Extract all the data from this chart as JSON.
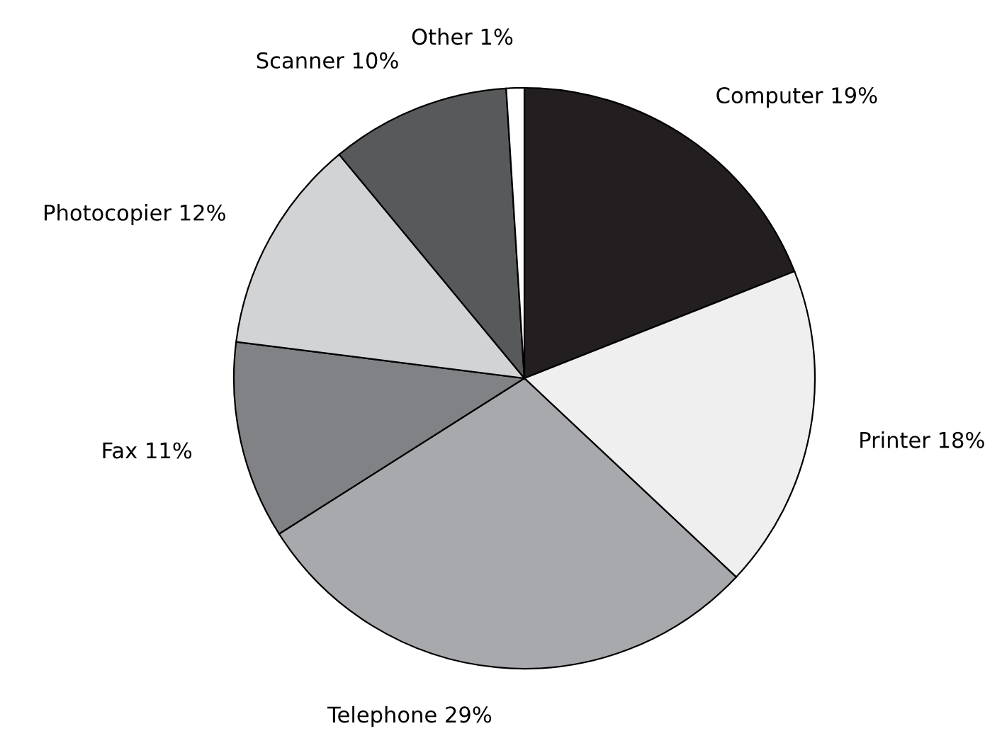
{
  "chart_data": {
    "type": "pie",
    "categories": [
      "Computer",
      "Printer",
      "Telephone",
      "Fax",
      "Photocopier",
      "Scanner",
      "Other"
    ],
    "values": [
      19,
      18,
      29,
      11,
      12,
      10,
      1
    ],
    "value_labels": [
      "19%",
      "18%",
      "29%",
      "11%",
      "12%",
      "10%",
      "1%"
    ],
    "colors": [
      "#231f20",
      "#efefef",
      "#a7a9ac",
      "#808285",
      "#d1d3d4",
      "#58595b",
      "#ffffff"
    ]
  }
}
